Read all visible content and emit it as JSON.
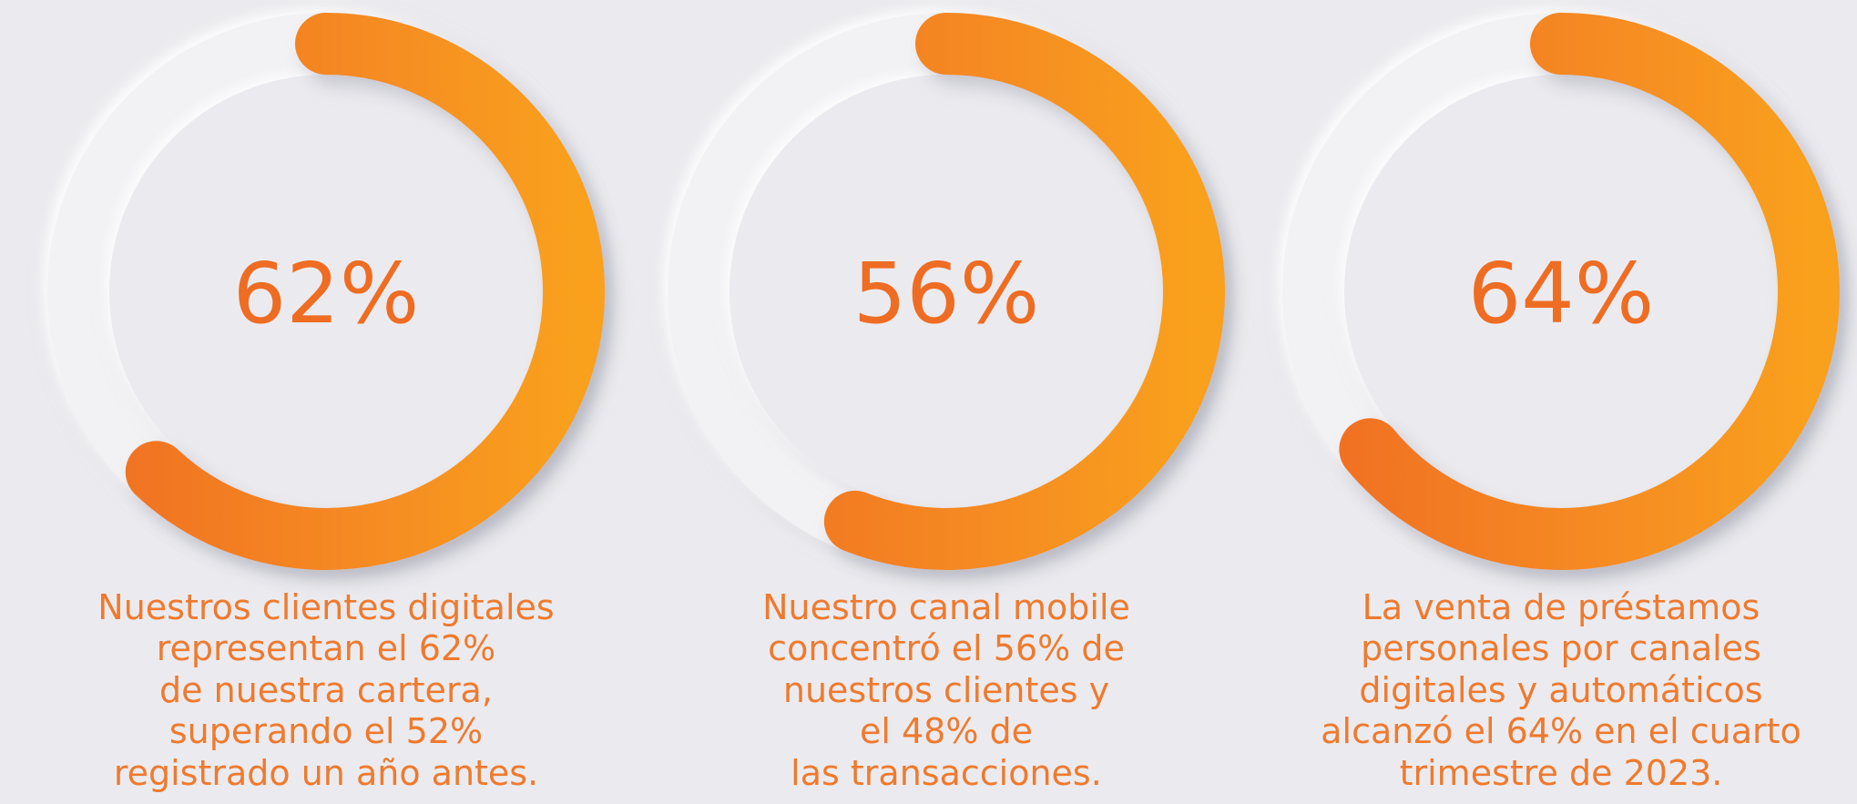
{
  "chart_data": [
    {
      "type": "donut",
      "values": [
        62
      ],
      "value_labels": [
        "62%"
      ],
      "ylim": [
        0,
        100
      ],
      "color": [
        "#f06e22",
        "#f9a01f"
      ],
      "caption": [
        "Nuestros clientes digitales",
        "representan el 62%",
        "de nuestra cartera,",
        "superando el 52%",
        "registrado un año antes."
      ]
    },
    {
      "type": "donut",
      "values": [
        56
      ],
      "value_labels": [
        "56%"
      ],
      "ylim": [
        0,
        100
      ],
      "color": [
        "#f06e22",
        "#f9a01f"
      ],
      "caption": [
        "Nuestro canal mobile",
        "concentró el 56% de",
        "nuestros clientes y",
        "el 48% de",
        "las transacciones."
      ]
    },
    {
      "type": "donut",
      "values": [
        64
      ],
      "value_labels": [
        "64%"
      ],
      "ylim": [
        0,
        100
      ],
      "color": [
        "#f06e22",
        "#f9a01f"
      ],
      "caption": [
        "La venta de préstamos",
        "personales por canales",
        "digitales y automáticos",
        "alcanzó el 64% en el cuarto",
        "trimestre de 2023."
      ]
    }
  ]
}
